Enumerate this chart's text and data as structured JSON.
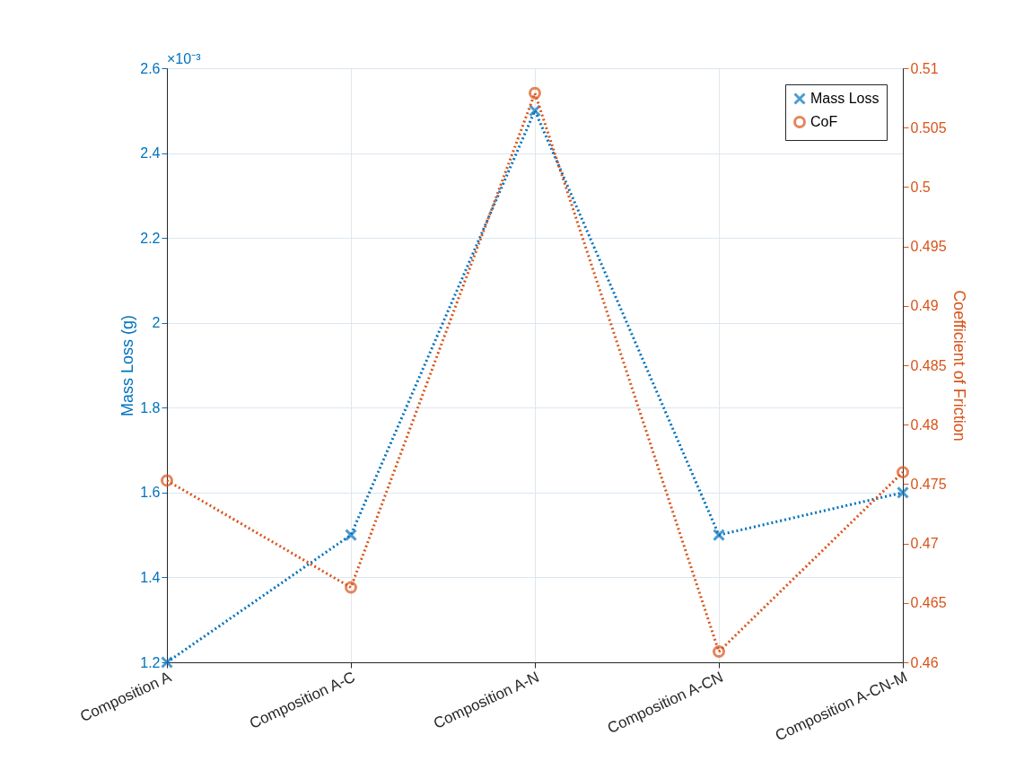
{
  "chart_data": {
    "type": "line",
    "ylabel": "Mass Loss (g)",
    "y2label": "Coefficient of Friction",
    "categories": [
      "Composition A",
      "Composition A-C",
      "Composition A-N",
      "Composition A-CN",
      "Composition A-CN-M"
    ],
    "series": [
      {
        "name": "Mass Loss",
        "color": "#0072bd",
        "marker": "cross",
        "values": [
          1.2,
          1.5,
          2.5,
          1.5,
          1.6
        ]
      },
      {
        "name": "CoF",
        "color": "#d95319",
        "marker": "circle",
        "axis": "y2",
        "values": [
          0.4753,
          0.4663,
          0.5079,
          0.4609,
          0.476
        ]
      }
    ],
    "ylim": [
      1.2,
      2.6
    ],
    "yticks": [
      1.2,
      1.4,
      1.6,
      1.8,
      2,
      2.2,
      2.4,
      2.6
    ],
    "y2lim": [
      0.46,
      0.51
    ],
    "y2ticks": [
      0.46,
      0.465,
      0.47,
      0.475,
      0.48,
      0.485,
      0.49,
      0.495,
      0.5,
      0.505,
      0.51
    ],
    "annotations": [
      "×10⁻³"
    ],
    "grid": true,
    "legend": "top right",
    "line_style": "dotted"
  }
}
